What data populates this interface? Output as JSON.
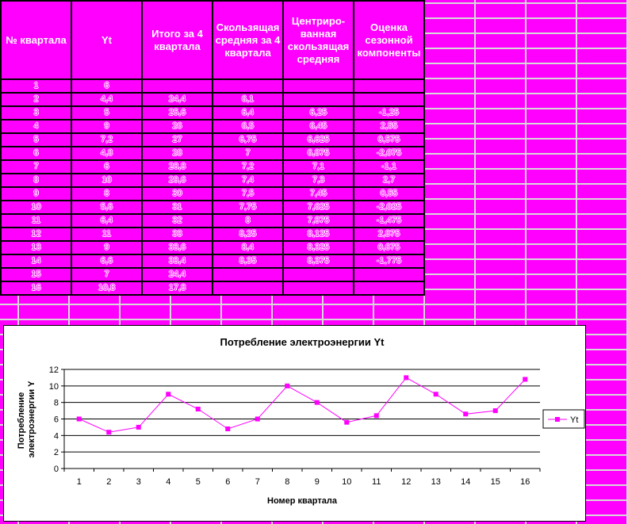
{
  "table": {
    "headers": [
      "№ квартала",
      "Yt",
      "Итого за 4 квартала",
      "Скольз­ящая средняя за 4 квартала",
      "Центриро­ванная скольз­ящая средняя",
      "Оценка сезонной компонен­ты"
    ],
    "rows": [
      [
        "1",
        "6",
        "",
        "",
        "",
        ""
      ],
      [
        "2",
        "4,4",
        "24,4",
        "6,1",
        "",
        ""
      ],
      [
        "3",
        "5",
        "25,6",
        "6,4",
        "6,25",
        "-1,25"
      ],
      [
        "4",
        "9",
        "26",
        "6,5",
        "6,45",
        "2,55"
      ],
      [
        "5",
        "7,2",
        "27",
        "6,75",
        "6,625",
        "0,575"
      ],
      [
        "6",
        "4,8",
        "28",
        "7",
        "6,875",
        "-2,075"
      ],
      [
        "7",
        "6",
        "28,8",
        "7,2",
        "7,1",
        "-1,1"
      ],
      [
        "8",
        "10",
        "29,6",
        "7,4",
        "7,3",
        "2,7"
      ],
      [
        "9",
        "8",
        "30",
        "7,5",
        "7,45",
        "0,55"
      ],
      [
        "10",
        "5,6",
        "31",
        "7,75",
        "7,625",
        "-2,025"
      ],
      [
        "11",
        "6,4",
        "32",
        "8",
        "7,875",
        "-1,475"
      ],
      [
        "12",
        "11",
        "33",
        "8,25",
        "8,125",
        "2,875"
      ],
      [
        "13",
        "9",
        "33,6",
        "8,4",
        "8,325",
        "0,675"
      ],
      [
        "14",
        "6,6",
        "33,4",
        "8,35",
        "8,375",
        "-1,775"
      ],
      [
        "15",
        "7",
        "24,4",
        "",
        "",
        ""
      ],
      [
        "16",
        "10,8",
        "17,8",
        "",
        "",
        ""
      ]
    ]
  },
  "colors": {
    "background": "#ff00ff",
    "series": "#ff00ff",
    "grid": "#000000"
  },
  "chart_data": {
    "type": "line",
    "title": "Потребление электроэнергии Yt",
    "xlabel": "Номер квартала",
    "ylabel_lines": [
      "Потребление",
      "электроэнергии Y"
    ],
    "x": [
      "1",
      "2",
      "3",
      "4",
      "5",
      "6",
      "7",
      "8",
      "9",
      "10",
      "11",
      "12",
      "13",
      "14",
      "15",
      "16"
    ],
    "series": [
      {
        "name": "Yt",
        "values": [
          6,
          4.4,
          5,
          9,
          7.2,
          4.8,
          6,
          10,
          8,
          5.6,
          6.4,
          11,
          9,
          6.6,
          7,
          10.8
        ]
      }
    ],
    "ylim": [
      0,
      12
    ],
    "yticks": [
      "0",
      "2",
      "4",
      "6",
      "8",
      "10",
      "12"
    ],
    "grid": "horizontal",
    "legend": "right",
    "marker": "square"
  }
}
